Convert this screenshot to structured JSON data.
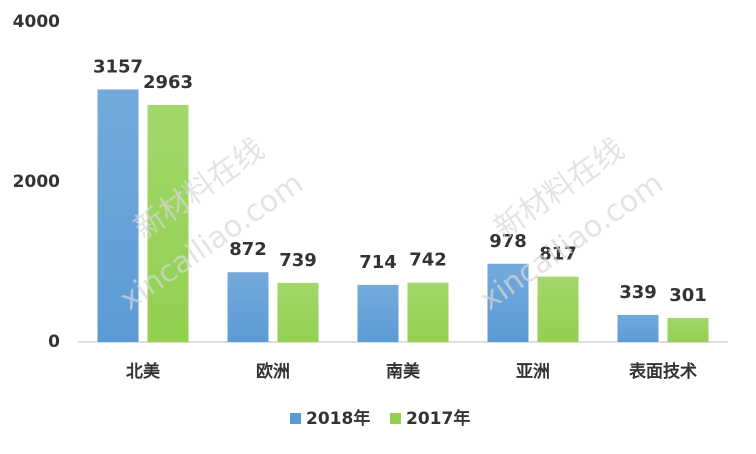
{
  "chart_data": {
    "type": "bar",
    "categories": [
      "北美",
      "欧洲",
      "南美",
      "亚洲",
      "表面技术"
    ],
    "series": [
      {
        "name": "2018年",
        "color": "#5b9bd5",
        "values": [
          3157,
          872,
          714,
          978,
          339
        ]
      },
      {
        "name": "2017年",
        "color": "#92d050",
        "values": [
          2963,
          739,
          742,
          817,
          301
        ]
      }
    ],
    "ylim": [
      0,
      4000
    ],
    "yticks": [
      0,
      2000,
      4000
    ],
    "grid": false,
    "legend": "bottom"
  },
  "watermarks": [
    "新材料在线",
    "xincailiao.com"
  ]
}
